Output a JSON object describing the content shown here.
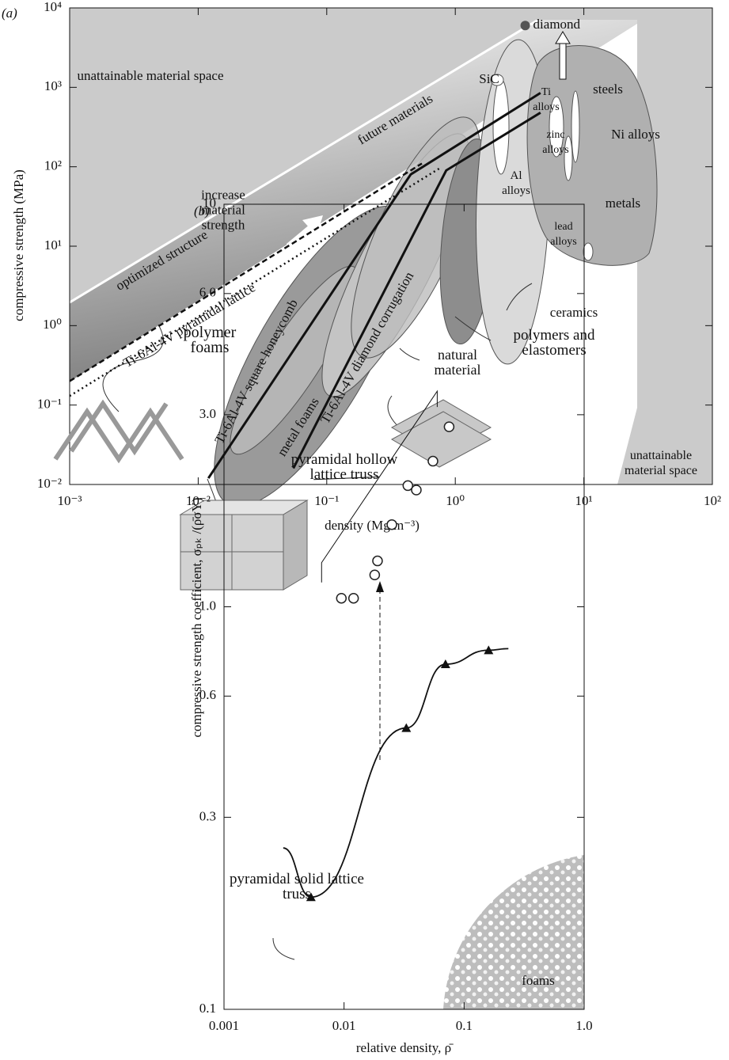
{
  "chart_data": [
    {
      "type": "line",
      "panel": "(a)",
      "x_label": "density (Mg m⁻³)",
      "y_label": "compressive strength (MPa)",
      "log_x": true,
      "log_y": true,
      "xlim": [
        0.001,
        100
      ],
      "ylim": [
        0.01,
        10000
      ],
      "xticks": [
        {
          "value": 0.001,
          "label": "10⁻³"
        },
        {
          "value": 0.01,
          "label": "10⁻²"
        },
        {
          "value": 0.1,
          "label": "10⁻¹"
        },
        {
          "value": 1,
          "label": "10⁰"
        },
        {
          "value": 10,
          "label": "10¹"
        },
        {
          "value": 100,
          "label": "10²"
        }
      ],
      "yticks": [
        {
          "value": 0.01,
          "label": "10⁻²"
        },
        {
          "value": 0.1,
          "label": "10⁻¹"
        },
        {
          "value": 1,
          "label": "10⁰"
        },
        {
          "value": 10,
          "label": "10¹"
        },
        {
          "value": 100,
          "label": "10²"
        },
        {
          "value": 1000,
          "label": "10³"
        },
        {
          "value": 10000,
          "label": "10⁴"
        }
      ],
      "series": [
        {
          "name": "Ti-6Al-4V square honeycomb",
          "color": "#111111",
          "dash": "solid",
          "x": [
            0.012,
            0.45,
            4.6
          ],
          "values": [
            0.012,
            80,
            850
          ]
        },
        {
          "name": "Ti-6Al-4V diamond corrugation",
          "color": "#111111",
          "dash": "solid",
          "x": [
            0.055,
            0.85,
            4.6
          ],
          "values": [
            0.016,
            90,
            480
          ]
        },
        {
          "name": "Ti-6Al-4V pyramidal lattice",
          "color": "#111111",
          "dash": "dotted",
          "x": [
            0.001,
            0.75
          ],
          "values": [
            0.13,
            95
          ]
        },
        {
          "name": "optimized structure",
          "color": "#111111",
          "dash": "dashed",
          "x": [
            0.001,
            0.55
          ],
          "values": [
            0.2,
            110
          ]
        }
      ],
      "points": [
        {
          "name": "diamond",
          "color": "#555555",
          "x": 3.5,
          "value": 6000
        }
      ],
      "annotations": [
        "unattainable material space",
        "future materials",
        "increase material strength",
        "metals",
        "ceramics",
        "polymers and elastomers",
        "natural material",
        "polymer foams",
        "metal foams",
        "unattainable material space",
        "steels",
        "Ni alloys",
        "zinc alloys",
        "Al alloys",
        "lead alloys",
        "Ti alloys",
        "SiC"
      ]
    },
    {
      "type": "scatter",
      "panel": "(b)",
      "x_label": "relative density, ρ̄",
      "y_label": "compressive strength coefficient, σₚₖ /(ρ̄σY)",
      "log_x": true,
      "log_y": true,
      "xlim": [
        0.001,
        1
      ],
      "ylim": [
        0.1,
        10
      ],
      "xticks": [
        0.001,
        0.01,
        0.1,
        {
          "value": 1,
          "label": "1.0"
        }
      ],
      "yticks": [
        0.1,
        0.3,
        0.6,
        {
          "value": 1,
          "label": "1.0"
        },
        {
          "value": 3,
          "label": "3.0"
        },
        {
          "value": 6,
          "label": "6.0"
        },
        10
      ],
      "series": [
        {
          "name": "pyramidal hollow lattice truss",
          "color": "#222222",
          "marker": "circle",
          "x": [
            0.0095,
            0.012,
            0.018,
            0.019,
            0.025,
            0.034,
            0.04,
            0.055,
            0.075
          ],
          "values": [
            1.05,
            1.05,
            1.2,
            1.3,
            1.6,
            2.0,
            1.95,
            2.3,
            2.8
          ]
        },
        {
          "name": "pyramidal solid lattice truss",
          "color": "#111111",
          "marker": "triangle",
          "x": [
            0.0053,
            0.033,
            0.07,
            0.16
          ],
          "values": [
            0.19,
            0.5,
            0.72,
            0.78
          ]
        }
      ],
      "annotations": [
        "foams"
      ]
    }
  ]
}
